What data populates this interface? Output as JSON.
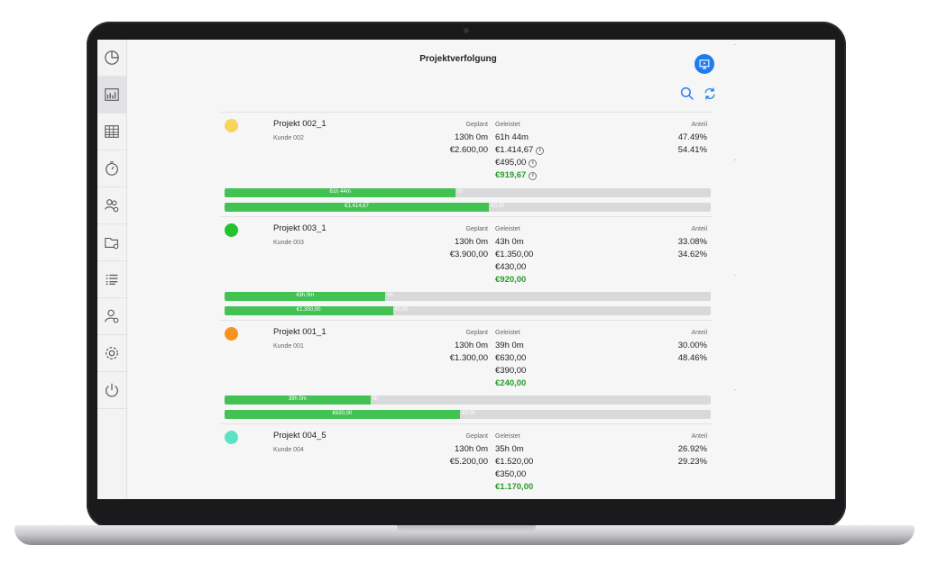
{
  "app": {
    "title": "Projektverfolgung"
  },
  "sidebar": {
    "items": [
      {
        "icon": "pie-chart-icon",
        "active": false
      },
      {
        "icon": "bar-chart-icon",
        "active": true
      },
      {
        "icon": "calendar-grid-icon",
        "active": false
      },
      {
        "icon": "stopwatch-icon",
        "active": false
      },
      {
        "icon": "team-settings-icon",
        "active": false
      },
      {
        "icon": "folder-settings-icon",
        "active": false
      },
      {
        "icon": "list-icon",
        "active": false
      },
      {
        "icon": "user-settings-icon",
        "active": false
      },
      {
        "icon": "gear-icon",
        "active": false
      },
      {
        "icon": "power-icon",
        "active": false
      }
    ]
  },
  "toolbar": {
    "screen_icon": "presentation-icon",
    "search_icon": "search-icon",
    "refresh_icon": "refresh-icon"
  },
  "labels": {
    "planned": "Geplant",
    "done": "Geleistet",
    "share": "Anteil"
  },
  "projects": [
    {
      "name": "Projekt 002_1",
      "customer": "Kunde 002",
      "color": "#f6d55b",
      "planned_time": "130h 0m",
      "planned_money": "€2.600,00",
      "done_time": "61h 44m",
      "done_money": "€1.414,67",
      "done_extra": "€495,00",
      "done_rest": "€919,67",
      "share_time": "47.49%",
      "share_money": "54.41%",
      "bar_time_label": "61h 44m",
      "bar_time_rest": "0h",
      "bar_time_fraction": 0.4749,
      "bar_money_label": "€1.414,67",
      "bar_money_rest": "€0,00",
      "bar_money_fraction": 0.5441,
      "has_info": true
    },
    {
      "name": "Projekt 003_1",
      "customer": "Kunde 003",
      "color": "#22c32f",
      "planned_time": "130h 0m",
      "planned_money": "€3.900,00",
      "done_time": "43h 0m",
      "done_money": "€1.350,00",
      "done_extra": "€430,00",
      "done_rest": "€920,00",
      "share_time": "33.08%",
      "share_money": "34.62%",
      "bar_time_label": "43h 0m",
      "bar_time_rest": "0h",
      "bar_time_fraction": 0.3308,
      "bar_money_label": "€1.350,00",
      "bar_money_rest": "€0,00",
      "bar_money_fraction": 0.3462,
      "has_info": false
    },
    {
      "name": "Projekt 001_1",
      "customer": "Kunde 001",
      "color": "#f7921e",
      "planned_time": "130h 0m",
      "planned_money": "€1.300,00",
      "done_time": "39h 0m",
      "done_money": "€630,00",
      "done_extra": "€390,00",
      "done_rest": "€240,00",
      "share_time": "30.00%",
      "share_money": "48.46%",
      "bar_time_label": "39h 0m",
      "bar_time_rest": "0h",
      "bar_time_fraction": 0.3,
      "bar_money_label": "€630,00",
      "bar_money_rest": "€0,00",
      "bar_money_fraction": 0.4846,
      "has_info": false
    },
    {
      "name": "Projekt 004_5",
      "customer": "Kunde 004",
      "color": "#5de3c3",
      "planned_time": "130h 0m",
      "planned_money": "€5.200,00",
      "done_time": "35h 0m",
      "done_money": "€1.520,00",
      "done_extra": "€350,00",
      "done_rest": "€1.170,00",
      "share_time": "26.92%",
      "share_money": "29.23%",
      "has_info": false
    }
  ]
}
